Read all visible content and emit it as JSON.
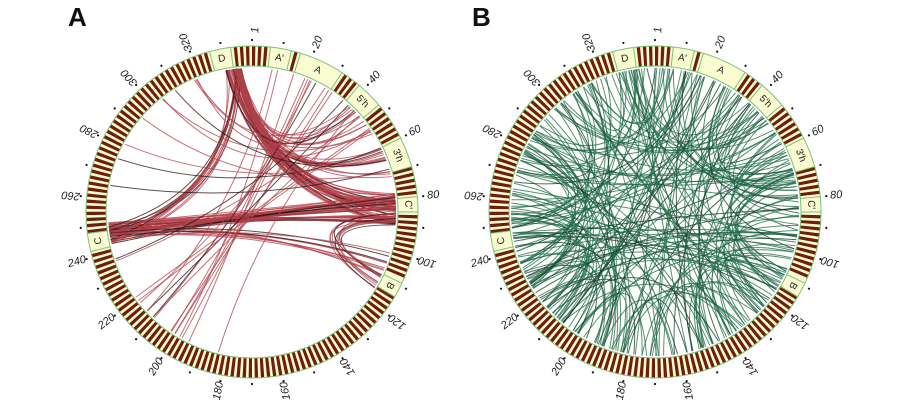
{
  "panels": [
    {
      "label": "A",
      "link_color": "#b0404a",
      "link_dark": "#2a1010",
      "bundles": [
        {
          "from": [
            330,
            336
          ],
          "to": [
            78,
            90
          ],
          "count": 40
        },
        {
          "from": [
            243,
            251
          ],
          "to": [
            78,
            90
          ],
          "count": 40
        },
        {
          "from": [
            330,
            336
          ],
          "to": [
            243,
            250
          ],
          "count": 14
        },
        {
          "from": [
            330,
            336
          ],
          "to": [
            60,
            72
          ],
          "count": 12
        },
        {
          "from": [
            20,
            32
          ],
          "to": [
            200,
            212
          ],
          "count": 6
        },
        {
          "from": [
            330,
            336
          ],
          "to": [
            40,
            52
          ],
          "count": 8
        },
        {
          "from": [
            243,
            250
          ],
          "to": [
            100,
            112
          ],
          "count": 10
        },
        {
          "from": [
            85,
            90
          ],
          "to": [
            108,
            116
          ],
          "count": 10
        },
        {
          "from": [
            5,
            60
          ],
          "to": [
            180,
            240
          ],
          "count": 12
        },
        {
          "from": [
            40,
            70
          ],
          "to": [
            260,
            330
          ],
          "count": 10
        }
      ]
    },
    {
      "label": "B",
      "link_color": "#1f6b45",
      "link_dark": "#123a28",
      "bundles": [
        {
          "from": [
            0,
            340
          ],
          "to": [
            0,
            340
          ],
          "count": 230
        }
      ]
    }
  ],
  "ring": {
    "total": 340,
    "tick_labels": [
      "1",
      "20",
      "40",
      "60",
      "80",
      "100",
      "120",
      "140",
      "160",
      "180",
      "200",
      "220",
      "240",
      "260",
      "280",
      "300",
      "320"
    ],
    "tick_positions": [
      1,
      20,
      40,
      60,
      80,
      100,
      120,
      140,
      160,
      180,
      200,
      220,
      240,
      260,
      280,
      300,
      320
    ],
    "stripe_color": "#6e1f0c",
    "light_color": "#fbfbd2",
    "border_color": "#7cc27a",
    "regions": [
      {
        "label": "D",
        "start": 326,
        "end": 333
      },
      {
        "label": "A'",
        "start": 6,
        "end": 13
      },
      {
        "label": "A",
        "start": 16,
        "end": 31
      },
      {
        "label": "5'h",
        "start": 38,
        "end": 47
      },
      {
        "label": "3'h",
        "start": 60,
        "end": 70
      },
      {
        "label": "C'",
        "start": 80,
        "end": 85
      },
      {
        "label": "B",
        "start": 109,
        "end": 114
      },
      {
        "label": "C",
        "start": 242,
        "end": 248
      }
    ]
  }
}
